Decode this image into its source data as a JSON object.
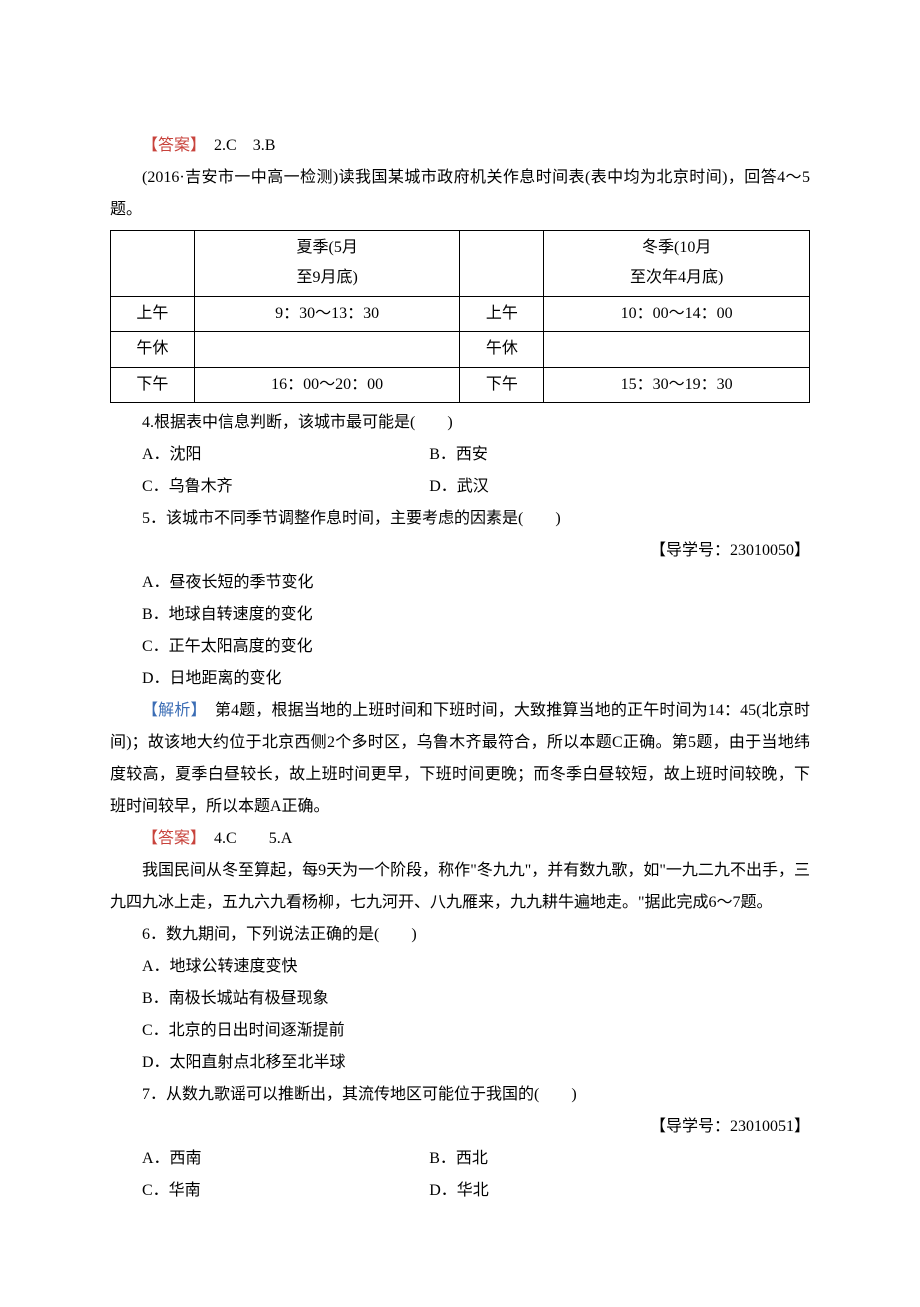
{
  "ans_block_1": {
    "label": "【答案】",
    "text": "2.C　3.B"
  },
  "intro1": "(2016·吉安市一中高一检测)读我国某城市政府机关作息时间表(表中均为北京时间)，回答4～5题。",
  "table": {
    "summer_head_l1": "夏季(5月",
    "summer_head_l2": "至9月底)",
    "winter_head_l1": "冬季(10月",
    "winter_head_l2": "至次年4月底)",
    "am": "上午",
    "rest": "午休",
    "pm": "下午",
    "summer_am": "9：30～13：30",
    "winter_am": "10：00～14：00",
    "summer_rest": "",
    "winter_rest": "",
    "summer_pm": "16：00～20：00",
    "winter_pm": "15：30～19：30"
  },
  "q4": {
    "stem": "4.根据表中信息判断，该城市最可能是(　　)",
    "a": "A．沈阳",
    "b": "B．西安",
    "c": "C．乌鲁木齐",
    "d": "D．武汉"
  },
  "q5": {
    "stem": "5．该城市不同季节调整作息时间，主要考虑的因素是(　　)",
    "ref": "【导学号：23010050】",
    "a": "A．昼夜长短的季节变化",
    "b": "B．地球自转速度的变化",
    "c": "C．正午太阳高度的变化",
    "d": "D．日地距离的变化"
  },
  "explain45": {
    "label": "【解析】",
    "text": "　第4题，根据当地的上班时间和下班时间，大致推算当地的正午时间为14：45(北京时间)；故该地大约位于北京西侧2个多时区，乌鲁木齐最符合，所以本题C正确。第5题，由于当地纬度较高，夏季白昼较长，故上班时间更早，下班时间更晚；而冬季白昼较短，故上班时间较晚，下班时间较早，所以本题A正确。"
  },
  "ans_block_2": {
    "label": "【答案】",
    "text": "4.C　　5.A"
  },
  "intro67": "我国民间从冬至算起，每9天为一个阶段，称作\"冬九九\"，并有数九歌，如\"一九二九不出手，三九四九冰上走，五九六九看杨柳，七九河开、八九雁来，九九耕牛遍地走。\"据此完成6～7题。",
  "q6": {
    "stem": "6．数九期间，下列说法正确的是(　　)",
    "a": "A．地球公转速度变快",
    "b": "B．南极长城站有极昼现象",
    "c": "C．北京的日出时间逐渐提前",
    "d": "D．太阳直射点北移至北半球"
  },
  "q7": {
    "stem": "7．从数九歌谣可以推断出，其流传地区可能位于我国的(　　)",
    "ref": "【导学号：23010051】",
    "a": "A．西南",
    "b": "B．西北",
    "c": "C．华南",
    "d": "D．华北"
  }
}
